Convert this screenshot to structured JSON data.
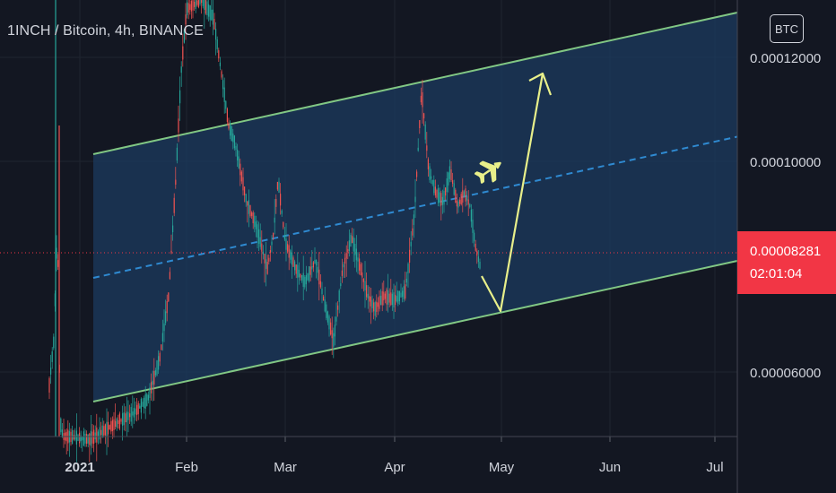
{
  "chart_data": {
    "type": "candlestick",
    "title": "1INCH / Bitcoin, 4h, BINANCE",
    "currency": "BTC",
    "x_ticks": [
      "2021",
      "Feb",
      "Mar",
      "Apr",
      "May",
      "Jun",
      "Jul"
    ],
    "y_ticks": [
      "0.00012000",
      "0.00010000",
      "0.00006000"
    ],
    "ylim": [
      4.55e-05,
      0.0001362
    ],
    "last_price": "0.00008281",
    "countdown": "02:01:04",
    "colors": {
      "up": "#26a69a",
      "down": "#ef5350",
      "channel_line": "#81c784",
      "channel_fill": "#1c3b5f",
      "mid_line": "#2f8ad1",
      "projection": "#e8ef8a",
      "price_line": "#f23645"
    },
    "drawings": {
      "channel": "ascending parallel channel",
      "projection": "down to lower channel line then up to upper channel line",
      "icon": "airplane-icon"
    }
  }
}
